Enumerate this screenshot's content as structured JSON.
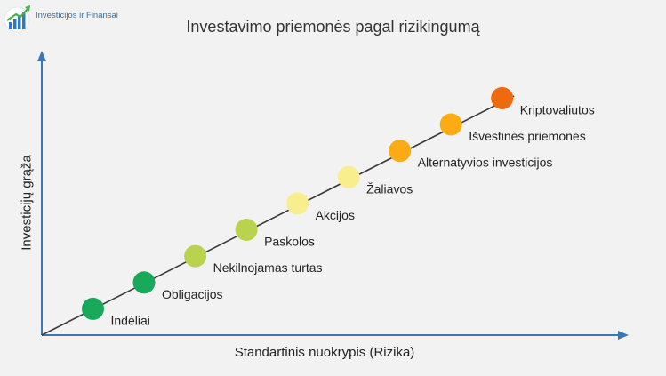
{
  "logo": {
    "text": "Investicijos ir Finansai"
  },
  "chart_data": {
    "type": "scatter",
    "title": "Investavimo priemonės pagal rizikingumą",
    "xlabel": "Standartinis nuokrypis (Rizika)",
    "ylabel": "Investicijų grąža",
    "grid": false,
    "xlim": [
      0,
      11.3
    ],
    "ylim": [
      0,
      10.5
    ],
    "points": [
      {
        "label": "Indėliai",
        "x": 1,
        "y": 1,
        "color": "#19a95a"
      },
      {
        "label": "Obligacijos",
        "x": 2,
        "y": 2,
        "color": "#19a95a"
      },
      {
        "label": "Nekilnojamas turtas",
        "x": 3,
        "y": 3,
        "color": "#b9d34e"
      },
      {
        "label": "Paskolos",
        "x": 4,
        "y": 4,
        "color": "#b9d34e"
      },
      {
        "label": "Akcijos",
        "x": 5,
        "y": 5,
        "color": "#f9ee8d"
      },
      {
        "label": "Žaliavos",
        "x": 6,
        "y": 6,
        "color": "#f9ee8d"
      },
      {
        "label": "Alternatyvios investicijos",
        "x": 7,
        "y": 7,
        "color": "#fbab13"
      },
      {
        "label": "Išvestinės priemonės",
        "x": 8,
        "y": 8,
        "color": "#fbab13"
      },
      {
        "label": "Kriptovaliutos",
        "x": 9,
        "y": 9,
        "color": "#ee6a0e"
      }
    ]
  }
}
